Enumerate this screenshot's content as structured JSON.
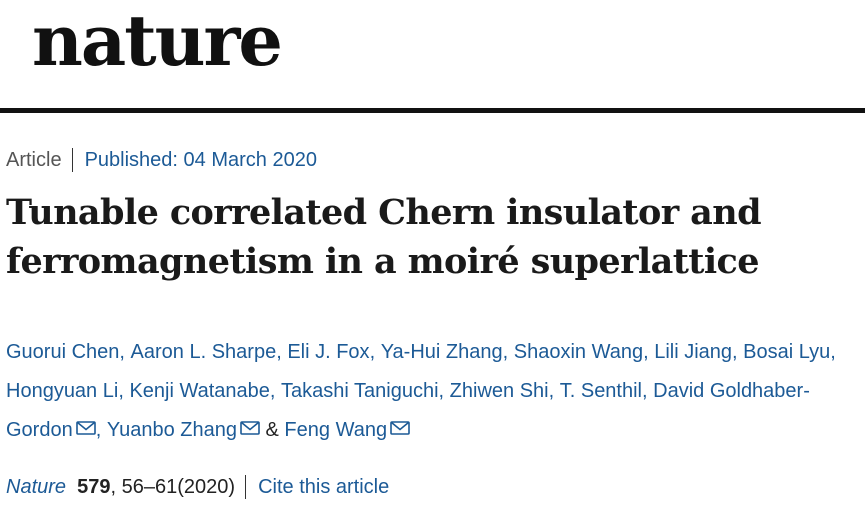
{
  "header": {
    "logo_text": "nature"
  },
  "article": {
    "type": "Article",
    "published": "Published: 04 March 2020",
    "title": "Tunable correlated Chern insulator and ferromagnetism in a moiré superlattice",
    "authors": [
      {
        "name": "Guorui Chen",
        "sep": ", "
      },
      {
        "name": "Aaron L. Sharpe",
        "sep": ", "
      },
      {
        "name": "Eli J. Fox",
        "sep": ", "
      },
      {
        "name": "Ya-Hui Zhang",
        "sep": ", "
      },
      {
        "name": "Shaoxin Wang",
        "sep": ", "
      },
      {
        "name": "Lili Jiang",
        "sep": ", "
      },
      {
        "name": "Bosai Lyu",
        "sep": ", "
      },
      {
        "name": "Hongyuan Li",
        "sep": ", "
      },
      {
        "name": "Kenji Watanabe",
        "sep": ", "
      },
      {
        "name": "Takashi Taniguchi",
        "sep": ", "
      },
      {
        "name": "Zhiwen Shi",
        "sep": ", "
      },
      {
        "name": "T. Senthil",
        "sep": ", "
      },
      {
        "name": "David Goldhaber-Gordon",
        "sep": ", "
      },
      {
        "name": "Yuanbo Zhang",
        "sep": " & "
      },
      {
        "name": "Feng Wang",
        "sep": ""
      }
    ],
    "citation": {
      "journal": "Nature",
      "volume": "579",
      "pages_year": ", 56–61(2020)",
      "cite_label": "Cite this article"
    }
  },
  "colors": {
    "link": "#1c5a96",
    "text": "#222222",
    "rule": "#111111"
  },
  "icons": {
    "email": "envelope-icon"
  }
}
